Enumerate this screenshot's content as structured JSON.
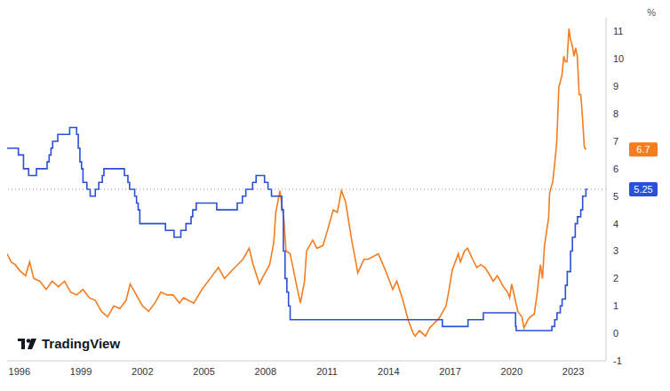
{
  "chart_data": {
    "type": "line",
    "ylabel": "%",
    "annotations": [
      "TradingView"
    ],
    "grid": false,
    "xlim": [
      1995.4,
      2024.6
    ],
    "xticks": [
      1996,
      1999,
      2002,
      2005,
      2008,
      2011,
      2014,
      2017,
      2020,
      2023
    ],
    "ylim": [
      -1,
      11.5
    ],
    "yticks": [
      -1,
      0,
      1,
      2,
      3,
      4,
      5,
      6,
      7,
      8,
      9,
      10,
      11
    ],
    "series": [
      {
        "color": "#f57c1f",
        "line_style": "solid",
        "x": [
          1995.4,
          1995.6,
          1995.8,
          1996.0,
          1996.3,
          1996.5,
          1996.7,
          1997.0,
          1997.3,
          1997.6,
          1997.9,
          1998.2,
          1998.5,
          1998.8,
          1999.1,
          1999.4,
          1999.7,
          2000.0,
          2000.3,
          2000.6,
          2000.9,
          2001.2,
          2001.4,
          2001.7,
          2002.0,
          2002.3,
          2002.6,
          2002.9,
          2003.2,
          2003.5,
          2003.8,
          2004.0,
          2004.5,
          2004.9,
          2005.3,
          2005.7,
          2006.0,
          2006.5,
          2006.9,
          2007.2,
          2007.4,
          2007.7,
          2007.9,
          2008.2,
          2008.4,
          2008.5,
          2008.7,
          2008.9,
          2009.0,
          2009.2,
          2009.5,
          2009.7,
          2009.9,
          2010.0,
          2010.3,
          2010.5,
          2010.8,
          2011.0,
          2011.3,
          2011.5,
          2011.7,
          2011.9,
          2012.2,
          2012.4,
          2012.5,
          2012.8,
          2013.0,
          2013.5,
          2013.9,
          2014.2,
          2014.4,
          2014.7,
          2014.95,
          2015.2,
          2015.3,
          2015.5,
          2015.8,
          2016.0,
          2016.4,
          2016.5,
          2016.8,
          2016.95,
          2017.1,
          2017.4,
          2017.5,
          2017.7,
          2017.85,
          2018.1,
          2018.3,
          2018.5,
          2018.7,
          2018.95,
          2019.1,
          2019.3,
          2019.6,
          2019.8,
          2019.9,
          2020.0,
          2020.3,
          2020.5,
          2020.6,
          2020.8,
          2020.9,
          2021.1,
          2021.25,
          2021.4,
          2021.5,
          2021.6,
          2021.8,
          2021.85,
          2021.95,
          2022.0,
          2022.1,
          2022.2,
          2022.3,
          2022.35,
          2022.45,
          2022.54,
          2022.62,
          2022.7,
          2022.79,
          2022.87,
          2022.95,
          2023.04,
          2023.12,
          2023.2,
          2023.29,
          2023.37,
          2023.45,
          2023.54,
          2023.62
        ],
        "values": [
          2.9,
          2.6,
          2.5,
          2.3,
          2.1,
          2.6,
          2.0,
          1.9,
          1.6,
          1.9,
          1.7,
          1.9,
          1.5,
          1.4,
          1.6,
          1.3,
          1.2,
          0.8,
          0.6,
          1.0,
          0.9,
          1.2,
          1.8,
          1.4,
          1.0,
          0.8,
          1.1,
          1.5,
          1.4,
          1.4,
          1.1,
          1.3,
          1.1,
          1.6,
          2.0,
          2.4,
          2.0,
          2.4,
          2.7,
          3.1,
          2.5,
          1.8,
          2.1,
          2.5,
          3.3,
          4.4,
          5.2,
          4.1,
          3.0,
          2.9,
          1.8,
          1.1,
          1.9,
          3.0,
          3.4,
          3.1,
          3.2,
          3.7,
          4.5,
          4.4,
          5.2,
          4.8,
          3.4,
          2.6,
          2.2,
          2.7,
          2.7,
          2.9,
          2.2,
          1.6,
          1.9,
          1.2,
          0.5,
          0.0,
          -0.1,
          0.1,
          -0.1,
          0.2,
          0.5,
          0.6,
          1.0,
          1.6,
          2.3,
          2.9,
          2.6,
          3.0,
          3.1,
          2.7,
          2.4,
          2.5,
          2.4,
          2.1,
          1.9,
          2.1,
          1.7,
          1.5,
          1.3,
          1.8,
          0.8,
          0.6,
          0.2,
          0.5,
          0.6,
          0.7,
          1.5,
          2.5,
          2.0,
          3.2,
          4.2,
          5.1,
          5.4,
          5.5,
          6.2,
          7.0,
          9.0,
          9.1,
          9.4,
          10.1,
          9.9,
          9.9,
          11.1,
          10.7,
          10.5,
          10.1,
          10.4,
          10.1,
          8.7,
          8.7,
          7.9,
          6.8,
          6.7
        ]
      },
      {
        "color": "#2a4fd8",
        "line_style": "step",
        "x": [
          1995.4,
          1995.95,
          1996.2,
          1996.45,
          1996.83,
          1997.35,
          1997.45,
          1997.54,
          1997.62,
          1997.87,
          1998.45,
          1998.79,
          1998.87,
          1998.95,
          1999.03,
          1999.1,
          1999.29,
          1999.45,
          1999.7,
          1999.87,
          2000.04,
          2000.12,
          2001.12,
          2001.29,
          2001.37,
          2001.62,
          2001.71,
          2001.79,
          2001.87,
          2003.12,
          2003.54,
          2003.87,
          2004.12,
          2004.37,
          2004.45,
          2004.62,
          2005.62,
          2006.62,
          2006.87,
          2007.04,
          2007.37,
          2007.54,
          2007.95,
          2008.12,
          2008.29,
          2008.79,
          2008.87,
          2008.95,
          2009.04,
          2009.12,
          2009.2,
          2016.62,
          2017.87,
          2018.62,
          2020.19,
          2020.22,
          2021.96,
          2022.1,
          2022.21,
          2022.37,
          2022.46,
          2022.62,
          2022.71,
          2022.87,
          2022.96,
          2023.1,
          2023.21,
          2023.37,
          2023.46,
          2023.62,
          2023.7
        ],
        "values": [
          6.75,
          6.5,
          6.0,
          5.75,
          6.0,
          6.25,
          6.5,
          6.75,
          7.0,
          7.25,
          7.5,
          7.25,
          6.75,
          6.25,
          6.0,
          5.5,
          5.25,
          5.0,
          5.25,
          5.5,
          5.75,
          6.0,
          5.75,
          5.5,
          5.25,
          5.0,
          4.75,
          4.5,
          4.0,
          3.75,
          3.5,
          3.75,
          4.0,
          4.25,
          4.5,
          4.75,
          4.5,
          4.75,
          5.0,
          5.25,
          5.5,
          5.75,
          5.5,
          5.25,
          5.0,
          4.5,
          3.0,
          2.0,
          1.5,
          1.0,
          0.5,
          0.25,
          0.5,
          0.75,
          0.25,
          0.1,
          0.25,
          0.5,
          0.75,
          1.0,
          1.25,
          1.75,
          2.25,
          3.0,
          3.5,
          4.0,
          4.25,
          4.5,
          5.0,
          5.25,
          5.25
        ]
      }
    ]
  }
}
